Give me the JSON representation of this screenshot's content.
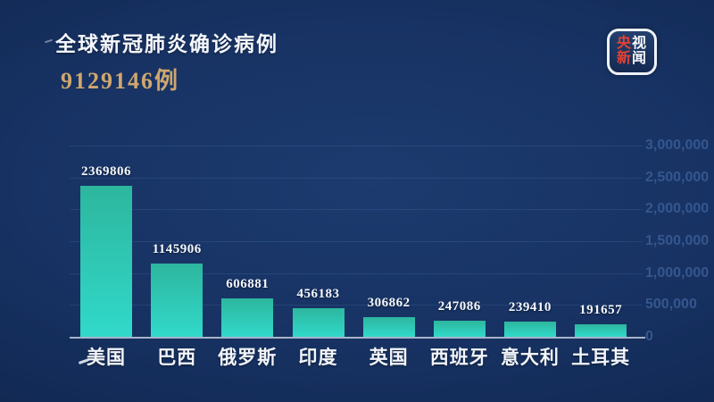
{
  "header": {
    "title": "全球新冠肺炎确诊病例",
    "total": "9129146例",
    "title_color": "#f4f7fc",
    "total_color": "#cfa76e"
  },
  "logo": {
    "name": "央视新闻",
    "chars": [
      {
        "t": "央",
        "color": "#e34234"
      },
      {
        "t": "视",
        "color": "#f5f7fa"
      },
      {
        "t": "新",
        "color": "#e34234"
      },
      {
        "t": "闻",
        "color": "#f5f7fa"
      }
    ]
  },
  "chart_data": {
    "type": "bar",
    "title": "全球新冠肺炎确诊病例",
    "subtitle_total": "9129146例",
    "categories": [
      "美国",
      "巴西",
      "俄罗斯",
      "印度",
      "英国",
      "西班牙",
      "意大利",
      "土耳其"
    ],
    "values": [
      2369806,
      1145906,
      606881,
      456183,
      306862,
      247086,
      239410,
      191657
    ],
    "value_labels": [
      "2369806",
      "1145906",
      "606881",
      "456183",
      "306862",
      "247086",
      "239410",
      "191657"
    ],
    "xlabel": "",
    "ylabel": "",
    "ylim": [
      0,
      3000000
    ],
    "yticks": [
      0,
      500000,
      1000000,
      1500000,
      2000000,
      2500000,
      3000000
    ],
    "ytick_labels": [
      "0",
      "500,000",
      "1,000,000",
      "1,500,000",
      "2,000,000",
      "2,500,000",
      "3,000,000"
    ],
    "grid": true,
    "legend_position": "none",
    "bar_color_top": "#2db69e",
    "bar_color_bottom": "#31d9ca",
    "axis_line_color": "#a7b4ca",
    "ytick_label_color": "#35568e"
  }
}
